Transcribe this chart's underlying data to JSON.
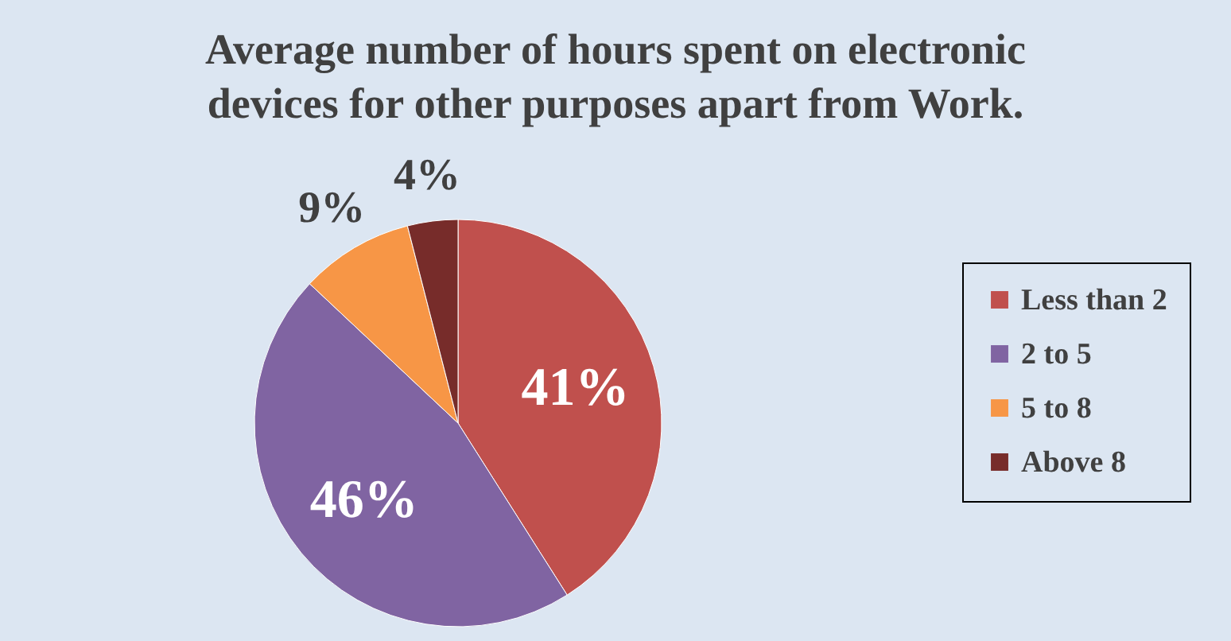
{
  "chart_data": {
    "type": "pie",
    "title": [
      "Average number of hours spent on electronic",
      "devices for other purposes apart from Work."
    ],
    "categories": [
      "Less than 2",
      "2 to 5",
      "5 to 8",
      "Above 8"
    ],
    "values": [
      41,
      46,
      9,
      4
    ],
    "value_labels": [
      "41%",
      "46%",
      "9%",
      "4%"
    ],
    "colors": [
      "#c0504d",
      "#8064a2",
      "#f79646",
      "#772c2a"
    ],
    "legend": "right"
  }
}
